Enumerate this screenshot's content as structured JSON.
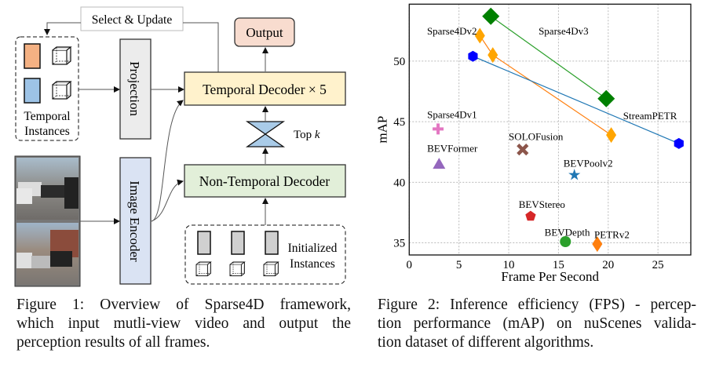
{
  "figure1": {
    "select_update": "Select & Update",
    "temporal_instances": [
      "Temporal",
      "Instances"
    ],
    "projection": "Projection",
    "image_encoder": "Image Encoder",
    "temporal_decoder": "Temporal Decoder × 5",
    "output": "Output",
    "top_k": "Top ",
    "top_k_var": "k",
    "non_temporal_decoder": "Non-Temporal Decoder",
    "initialized_instances": [
      "Initialized",
      "Instances"
    ],
    "colors": {
      "temporal_decoder": "#fff2cc",
      "non_temporal_decoder": "#e2efd9",
      "output": "#f8dccf",
      "projection": "#ececec",
      "image_encoder": "#dae3f3",
      "instance_orange": "#f4b183",
      "instance_blue": "#9dc3e6",
      "instance_gray": "#d0d0d0"
    },
    "caption": [
      "Figure 1: Overview of Sparse4D framework,",
      "which input mutli-view video and output the",
      "perception results of all frames."
    ]
  },
  "figure2": {
    "caption": [
      "Figure 2: Inference efficiency (FPS) - percep-",
      "tion performance (mAP) on nuScenes valida-",
      "tion dataset of different algorithms."
    ]
  },
  "chart_data": {
    "type": "scatter",
    "xlabel": "Frame Per Second",
    "ylabel": "mAP",
    "xlim": [
      0,
      28.3
    ],
    "ylim": [
      34,
      54.7
    ],
    "xticks": [
      0,
      5,
      10,
      15,
      20,
      25
    ],
    "yticks": [
      35,
      40,
      45,
      50
    ],
    "grid": true,
    "series": [
      {
        "name": "Sparse4Dv3",
        "marker": "diamond",
        "color": "#008000",
        "line_color": "#2ca02c",
        "x": [
          8.2,
          19.8
        ],
        "y": [
          53.7,
          46.9
        ],
        "connected": true
      },
      {
        "name": "Sparse4Dv2",
        "marker": "thin-diamond",
        "color": "#ffa500",
        "line_color": "#ff7f0e",
        "x": [
          7.1,
          8.4,
          20.3
        ],
        "y": [
          52.1,
          50.5,
          43.9
        ],
        "connected": true
      },
      {
        "name": "StreamPETR",
        "marker": "hexagon",
        "color": "#0000ff",
        "line_color": "#1f77b4",
        "x": [
          6.4,
          27.1
        ],
        "y": [
          50.4,
          43.2
        ],
        "connected": true
      },
      {
        "name": "Sparse4Dv1",
        "marker": "plus",
        "color": "#e377c2",
        "x": [
          2.9
        ],
        "y": [
          44.4
        ]
      },
      {
        "name": "BEVFormer",
        "marker": "triangle",
        "color": "#9467bd",
        "x": [
          3.0
        ],
        "y": [
          41.5
        ]
      },
      {
        "name": "SOLOFusion",
        "marker": "x",
        "color": "#8c564b",
        "x": [
          11.4
        ],
        "y": [
          42.7
        ]
      },
      {
        "name": "BEVPoolv2",
        "marker": "star",
        "color": "#1f77b4",
        "x": [
          16.6
        ],
        "y": [
          40.6
        ]
      },
      {
        "name": "BEVStereo",
        "marker": "pentagon",
        "color": "#d62728",
        "x": [
          12.2
        ],
        "y": [
          37.2
        ]
      },
      {
        "name": "BEVDepth",
        "marker": "circle",
        "color": "#2ca02c",
        "x": [
          15.7
        ],
        "y": [
          35.1
        ]
      },
      {
        "name": "PETRv2",
        "marker": "thin-diamond",
        "color": "#ff7f0e",
        "x": [
          18.9
        ],
        "y": [
          34.9
        ]
      }
    ]
  }
}
